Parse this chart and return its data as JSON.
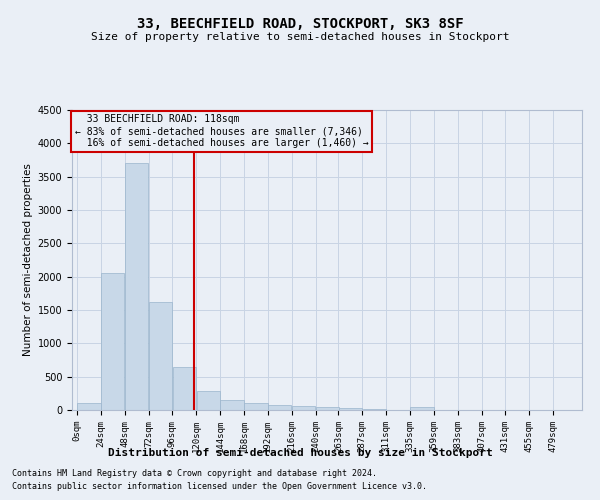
{
  "title": "33, BEECHFIELD ROAD, STOCKPORT, SK3 8SF",
  "subtitle": "Size of property relative to semi-detached houses in Stockport",
  "xlabel": "Distribution of semi-detached houses by size in Stockport",
  "ylabel": "Number of semi-detached properties",
  "footer_line1": "Contains HM Land Registry data © Crown copyright and database right 2024.",
  "footer_line2": "Contains public sector information licensed under the Open Government Licence v3.0.",
  "property_size": 118,
  "property_label": "33 BEECHFIELD ROAD: 118sqm",
  "pct_smaller": 83,
  "count_smaller": 7346,
  "pct_larger": 16,
  "count_larger": 1460,
  "bin_width": 24,
  "bin_starts": [
    0,
    24,
    48,
    72,
    96,
    120,
    144,
    168,
    192,
    216,
    240,
    263,
    287,
    311,
    335,
    359,
    383,
    407,
    431,
    455,
    479
  ],
  "bin_counts": [
    100,
    2050,
    3700,
    1620,
    650,
    280,
    150,
    105,
    80,
    60,
    45,
    30,
    20,
    5,
    40,
    5,
    0,
    0,
    0,
    0,
    0
  ],
  "bar_color": "#c8d8e8",
  "bar_edge_color": "#9ab4cc",
  "vline_color": "#cc0000",
  "annotation_box_color": "#cc0000",
  "grid_color": "#c8d4e4",
  "background_color": "#eaeff6",
  "ylim": [
    0,
    4500
  ],
  "yticks": [
    0,
    500,
    1000,
    1500,
    2000,
    2500,
    3000,
    3500,
    4000,
    4500
  ]
}
